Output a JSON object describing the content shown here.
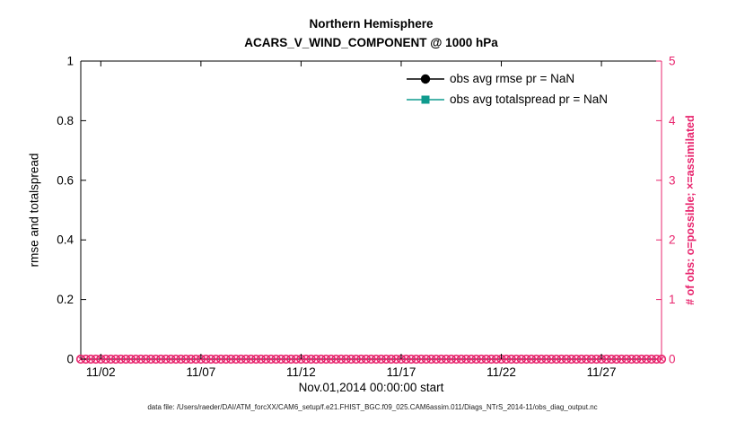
{
  "title": {
    "line1": "Northern Hemisphere",
    "line2": "ACARS_V_WIND_COMPONENT @ 1000 hPa"
  },
  "labels": {
    "xlabel": "Nov.01,2014 00:00:00 start",
    "ylabel_left": "rmse and totalspread",
    "ylabel_right": "# of obs: o=possible; ×=assimilated"
  },
  "colors": {
    "pink": "#e8246d",
    "teal": "#0f9b8e",
    "black": "#000000"
  },
  "legend": {
    "items": [
      {
        "label": "obs avg rmse pr = NaN",
        "color": "#000000",
        "marker": "circle"
      },
      {
        "label": "obs avg totalspread pr = NaN",
        "color": "#0f9b8e",
        "marker": "square"
      }
    ]
  },
  "footer": {
    "data_file": "data file: /Users/raeder/DAI/ATM_forcXX/CAM6_setup/f.e21.FHIST_BGC.f09_025.CAM6assim.011/Diags_NTrS_2014-11/obs_diag_output.nc"
  },
  "chart_data": {
    "type": "line",
    "title": "Northern Hemisphere — ACARS_V_WIND_COMPONENT @ 1000 hPa",
    "xlabel": "Nov.01,2014 00:00:00 start",
    "ylabel_left": "rmse and totalspread",
    "ylabel_right": "# of obs: o=possible; ×=assimilated",
    "x_axis": {
      "units": "days since Nov.01,2014 00:00:00",
      "min": 0,
      "max": 29,
      "ticks": [
        {
          "v": 1,
          "label": "11/02"
        },
        {
          "v": 6,
          "label": "11/07"
        },
        {
          "v": 11,
          "label": "11/12"
        },
        {
          "v": 16,
          "label": "11/17"
        },
        {
          "v": 21,
          "label": "11/22"
        },
        {
          "v": 26,
          "label": "11/27"
        }
      ]
    },
    "y_left": {
      "min": 0,
      "max": 1,
      "ticks": [
        {
          "v": 0,
          "label": "0"
        },
        {
          "v": 0.2,
          "label": "0.2"
        },
        {
          "v": 0.4,
          "label": "0.4"
        },
        {
          "v": 0.6,
          "label": "0.6"
        },
        {
          "v": 0.8,
          "label": "0.8"
        },
        {
          "v": 1,
          "label": "1"
        }
      ]
    },
    "y_right": {
      "min": 0,
      "max": 5,
      "ticks": [
        {
          "v": 0,
          "label": "0"
        },
        {
          "v": 1,
          "label": "1"
        },
        {
          "v": 2,
          "label": "2"
        },
        {
          "v": 3,
          "label": "3"
        },
        {
          "v": 4,
          "label": "4"
        },
        {
          "v": 5,
          "label": "5"
        }
      ]
    },
    "series": [
      {
        "name": "obs avg rmse pr",
        "axis": "left",
        "color": "#000000",
        "marker": "circle",
        "values": "NaN"
      },
      {
        "name": "obs avg totalspread pr",
        "axis": "left",
        "color": "#0f9b8e",
        "marker": "square",
        "values": "NaN"
      },
      {
        "name": "# obs possible",
        "axis": "right",
        "color": "#e8246d",
        "marker": "o",
        "x_start": 0,
        "x_step": 0.25,
        "x_end": 29,
        "y_constant": 0
      },
      {
        "name": "# obs assimilated",
        "axis": "right",
        "color": "#e8246d",
        "marker": "x",
        "x_start": 0,
        "x_step": 0.25,
        "x_end": 29,
        "y_constant": 0
      }
    ]
  }
}
